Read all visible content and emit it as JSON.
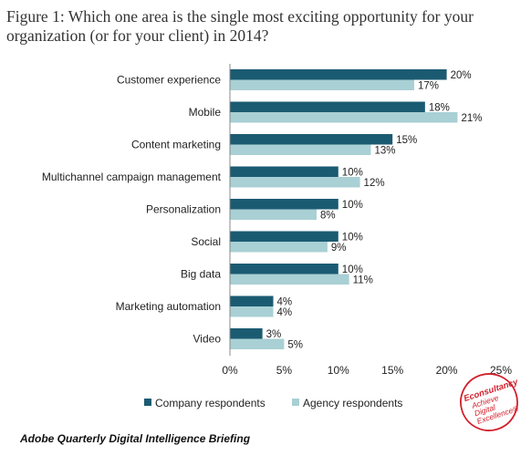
{
  "title_line1": "Figure 1: Which one area is the single most exciting opportunity for your",
  "title_line2": "organization (or for your client) in 2014?",
  "source": "Adobe Quarterly Digital Intelligence Briefing",
  "stamp": {
    "lines": [
      "Econsultancy",
      "Achieve",
      "Digital",
      "Excellence®"
    ],
    "color": "#d21f2b"
  },
  "chart_data": {
    "type": "bar",
    "orientation": "horizontal",
    "categories": [
      "Customer experience",
      "Mobile",
      "Content marketing",
      "Multichannel campaign management",
      "Personalization",
      "Social",
      "Big data",
      "Marketing automation",
      "Video"
    ],
    "series": [
      {
        "name": "Company respondents",
        "color": "#1b5b72",
        "values": [
          20,
          18,
          15,
          10,
          10,
          10,
          10,
          4,
          3
        ],
        "labels": [
          "20%",
          "18%",
          "15%",
          "10%",
          "10%",
          "10%",
          "10%",
          "4%",
          "3%"
        ]
      },
      {
        "name": "Agency respondents",
        "color": "#a9d0d4",
        "values": [
          17,
          21,
          13,
          12,
          8,
          9,
          11,
          4,
          5
        ],
        "labels": [
          "17%",
          "21%",
          "13%",
          "12%",
          "8%",
          "9%",
          "11%",
          "4%",
          "5%"
        ]
      }
    ],
    "xlim": [
      0,
      25
    ],
    "xticks": [
      0,
      5,
      10,
      15,
      20,
      25
    ],
    "xtick_labels": [
      "0%",
      "5%",
      "10%",
      "15%",
      "20%",
      "25%"
    ],
    "grid": false,
    "legend_position": "bottom"
  }
}
